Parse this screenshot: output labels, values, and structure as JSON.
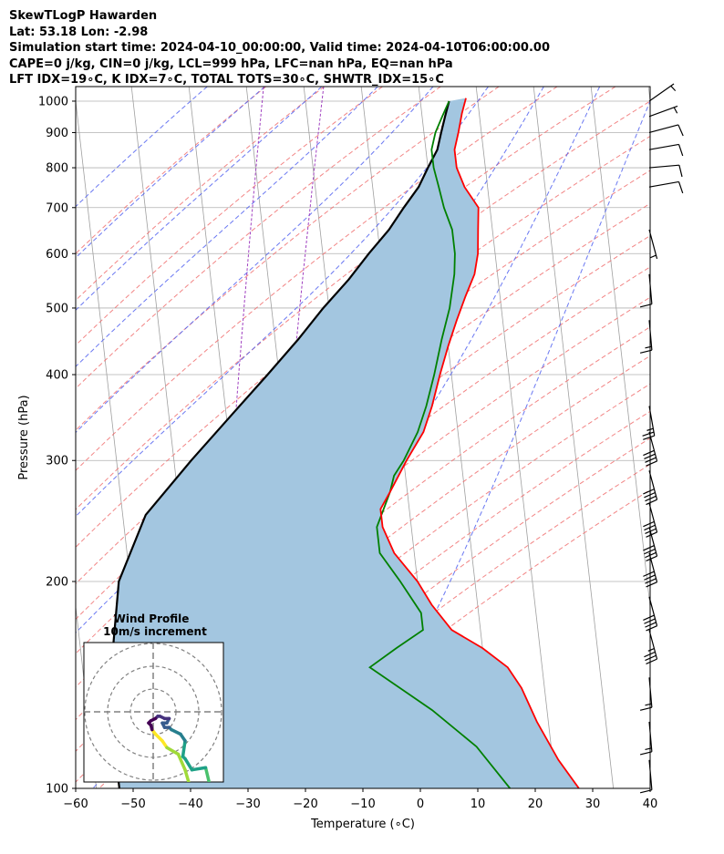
{
  "header": {
    "line1": "SkewTLogP Hawarden",
    "line2": "Lat: 53.18   Lon: -2.98",
    "line3": "Simulation start time: 2024-04-10_00:00:00, Valid time: 2024-04-10T06:00:00.00",
    "line4": "CAPE=0 j/kg, CIN=0 j/kg, LCL=999 hPa, LFC=nan hPa, EQ=nan hPa",
    "line5": "LFT IDX=19∘C, K IDX=7∘C, TOTAL TOTS=30∘C, SHWTR_IDX=15∘C"
  },
  "chart_data": [
    {
      "type": "line",
      "title": "SkewTLogP Hawarden",
      "xlabel": "Temperature (∘C)",
      "ylabel": "Pressure (hPa)",
      "xlim": [
        -60,
        40
      ],
      "ylim": [
        1050,
        100
      ],
      "y_scale": "log",
      "x_ticks": [
        "−60",
        "−50",
        "−40",
        "−30",
        "−20",
        "−10",
        "0",
        "10",
        "20",
        "30",
        "40"
      ],
      "y_ticks": [
        "100",
        "200",
        "300",
        "400",
        "500",
        "600",
        "700",
        "800",
        "900",
        "1000"
      ],
      "grid": true,
      "colors": {
        "temperature": "#ff0000",
        "dewpoint": "#008000",
        "parcel": "#000000",
        "shade": "#a3c6e0",
        "dry_adiabat": "#f07070",
        "moist_adiabat": "#5060f0",
        "mixing_ratio": "#a040c0",
        "isotherm": "#a0a0a0"
      },
      "series": [
        {
          "name": "temperature",
          "points": [
            [
              8,
              1010
            ],
            [
              7,
              960
            ],
            [
              6,
              900
            ],
            [
              5,
              850
            ],
            [
              5,
              800
            ],
            [
              6,
              750
            ],
            [
              8,
              700
            ],
            [
              7.5,
              650
            ],
            [
              7,
              600
            ],
            [
              6,
              560
            ],
            [
              4,
              520
            ],
            [
              2,
              480
            ],
            [
              0,
              440
            ],
            [
              -2,
              400
            ],
            [
              -4,
              360
            ],
            [
              -6,
              330
            ],
            [
              -9.5,
              300
            ],
            [
              -13,
              270
            ],
            [
              -15,
              255
            ],
            [
              -15,
              240
            ],
            [
              -13.5,
              220
            ],
            [
              -10,
              200
            ],
            [
              -8,
              185
            ],
            [
              -5,
              170
            ],
            [
              0,
              160
            ],
            [
              4,
              150
            ],
            [
              6,
              140
            ],
            [
              8,
              125
            ],
            [
              11,
              110
            ],
            [
              14,
              100
            ]
          ]
        },
        {
          "name": "dewpoint",
          "points": [
            [
              5,
              1000
            ],
            [
              3.5,
              950
            ],
            [
              2,
              900
            ],
            [
              1,
              850
            ],
            [
              1,
              800
            ],
            [
              1.5,
              750
            ],
            [
              2,
              700
            ],
            [
              3,
              650
            ],
            [
              3,
              600
            ],
            [
              2.5,
              560
            ],
            [
              1,
              500
            ],
            [
              -1,
              450
            ],
            [
              -3,
              400
            ],
            [
              -5,
              360
            ],
            [
              -7,
              330
            ],
            [
              -10,
              300
            ],
            [
              -12,
              285
            ],
            [
              -13,
              270
            ],
            [
              -16,
              240
            ],
            [
              -16,
              220
            ],
            [
              -13,
              200
            ],
            [
              -10,
              180
            ],
            [
              -10,
              170
            ],
            [
              -15,
              160
            ],
            [
              -20,
              150
            ],
            [
              -10,
              130
            ],
            [
              -3,
              115
            ],
            [
              2,
              100
            ]
          ]
        },
        {
          "name": "parcel",
          "points": [
            [
              5,
              1000
            ],
            [
              4,
              950
            ],
            [
              3,
              900
            ],
            [
              2,
              850
            ],
            [
              0,
              800
            ],
            [
              -2,
              750
            ],
            [
              -5,
              700
            ],
            [
              -8,
              650
            ],
            [
              -12,
              600
            ],
            [
              -16,
              550
            ],
            [
              -21,
              500
            ],
            [
              -26,
              450
            ],
            [
              -32,
              400
            ],
            [
              -39,
              350
            ],
            [
              -47,
              300
            ],
            [
              -56,
              250
            ],
            [
              -62,
              200
            ],
            [
              -65,
              150
            ],
            [
              -66,
              120
            ],
            [
              -66,
              100
            ]
          ]
        }
      ]
    },
    {
      "type": "scatter",
      "title": "Wind Profile",
      "subtitle": "10m/s increment",
      "rings_ms": [
        10,
        20,
        30
      ],
      "hodograph": [
        [
          -0.5,
          8
        ],
        [
          1,
          10
        ],
        [
          4,
          13
        ],
        [
          6,
          16
        ],
        [
          11,
          19
        ],
        [
          14,
          26
        ],
        [
          16,
          33
        ],
        [
          21,
          44
        ],
        [
          25,
          46
        ],
        [
          25,
          36
        ],
        [
          27,
          42
        ],
        [
          23,
          25
        ],
        [
          17,
          26
        ],
        [
          14,
          21
        ],
        [
          13,
          20
        ],
        [
          14,
          13
        ],
        [
          12,
          10
        ],
        [
          8,
          8
        ],
        [
          7,
          7
        ],
        [
          5,
          7
        ],
        [
          4,
          5
        ],
        [
          6,
          5
        ],
        [
          7,
          3
        ],
        [
          5,
          3
        ],
        [
          3,
          2
        ],
        [
          2,
          2
        ],
        [
          1,
          3
        ],
        [
          -1,
          4
        ],
        [
          -2,
          5
        ],
        [
          -1,
          6
        ],
        [
          -0.5,
          8
        ]
      ]
    },
    {
      "type": "scatter",
      "title": "wind barbs",
      "series": [
        {
          "name": "barbs",
          "points": [
            {
              "p": 1000,
              "dir": 235,
              "speed_kt": 6
            },
            {
              "p": 950,
              "dir": 250,
              "speed_kt": 7
            },
            {
              "p": 900,
              "dir": 255,
              "speed_kt": 10
            },
            {
              "p": 850,
              "dir": 260,
              "speed_kt": 10
            },
            {
              "p": 800,
              "dir": 265,
              "speed_kt": 10
            },
            {
              "p": 750,
              "dir": 260,
              "speed_kt": 10
            },
            {
              "p": 650,
              "dir": 345,
              "speed_kt": 5
            },
            {
              "p": 560,
              "dir": 355,
              "speed_kt": 10
            },
            {
              "p": 480,
              "dir": 355,
              "speed_kt": 15
            },
            {
              "p": 360,
              "dir": 350,
              "speed_kt": 25
            },
            {
              "p": 330,
              "dir": 345,
              "speed_kt": 40
            },
            {
              "p": 290,
              "dir": 345,
              "speed_kt": 40
            },
            {
              "p": 260,
              "dir": 345,
              "speed_kt": 40
            },
            {
              "p": 240,
              "dir": 345,
              "speed_kt": 40
            },
            {
              "p": 220,
              "dir": 345,
              "speed_kt": 40
            },
            {
              "p": 190,
              "dir": 345,
              "speed_kt": 40
            },
            {
              "p": 170,
              "dir": 345,
              "speed_kt": 35
            },
            {
              "p": 145,
              "dir": 355,
              "speed_kt": 15
            },
            {
              "p": 125,
              "dir": 355,
              "speed_kt": 15
            },
            {
              "p": 110,
              "dir": 355,
              "speed_kt": 10
            }
          ]
        }
      ]
    }
  ]
}
